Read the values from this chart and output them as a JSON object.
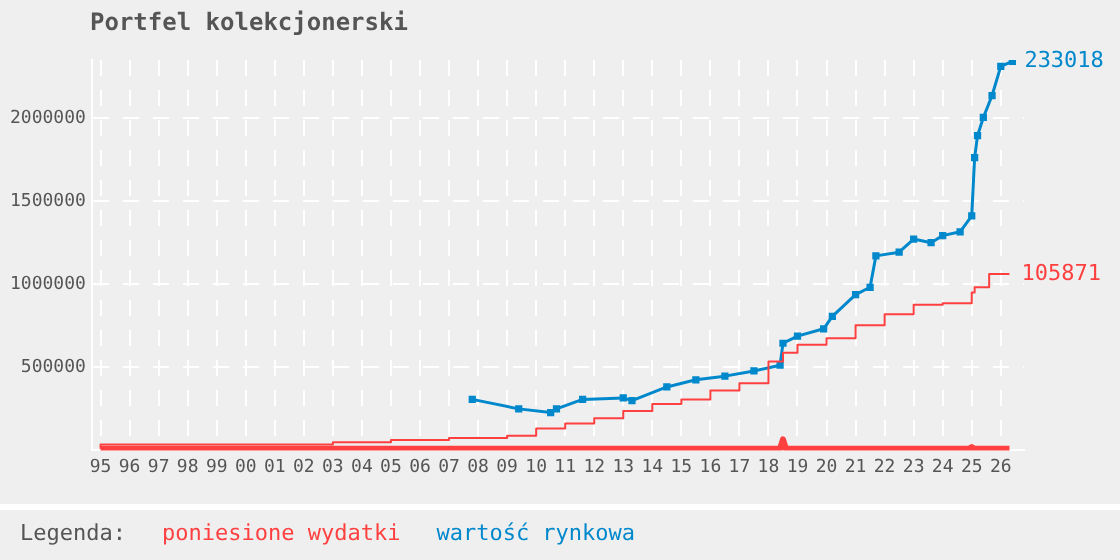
{
  "chart_data": {
    "type": "line",
    "title": "Portfel kolekcjonerski",
    "legend_title": "Legenda:",
    "legend": "bottom",
    "grid": true,
    "xlim": [
      1994.7,
      2026.8
    ],
    "xticks": [
      {
        "value": 1995,
        "label": "95"
      },
      {
        "value": 1996,
        "label": "96"
      },
      {
        "value": 1997,
        "label": "97"
      },
      {
        "value": 1998,
        "label": "98"
      },
      {
        "value": 1999,
        "label": "99"
      },
      {
        "value": 2000,
        "label": "00"
      },
      {
        "value": 2001,
        "label": "01"
      },
      {
        "value": 2002,
        "label": "02"
      },
      {
        "value": 2003,
        "label": "03"
      },
      {
        "value": 2004,
        "label": "04"
      },
      {
        "value": 2005,
        "label": "05"
      },
      {
        "value": 2006,
        "label": "06"
      },
      {
        "value": 2007,
        "label": "07"
      },
      {
        "value": 2008,
        "label": "08"
      },
      {
        "value": 2009,
        "label": "09"
      },
      {
        "value": 2010,
        "label": "10"
      },
      {
        "value": 2011,
        "label": "11"
      },
      {
        "value": 2012,
        "label": "12"
      },
      {
        "value": 2013,
        "label": "13"
      },
      {
        "value": 2014,
        "label": "14"
      },
      {
        "value": 2015,
        "label": "15"
      },
      {
        "value": 2016,
        "label": "16"
      },
      {
        "value": 2017,
        "label": "17"
      },
      {
        "value": 2018,
        "label": "18"
      },
      {
        "value": 2019,
        "label": "19"
      },
      {
        "value": 2020,
        "label": "20"
      },
      {
        "value": 2021,
        "label": "21"
      },
      {
        "value": 2022,
        "label": "22"
      },
      {
        "value": 2023,
        "label": "23"
      },
      {
        "value": 2024,
        "label": "24"
      },
      {
        "value": 2025,
        "label": "25"
      },
      {
        "value": 2026,
        "label": "26"
      }
    ],
    "ylim": [
      0,
      2350000
    ],
    "yticks": [
      500000,
      1000000,
      1500000,
      2000000
    ],
    "series": [
      {
        "color": "#ff4040",
        "marker": "none",
        "x": [
          1995,
          2003,
          2010,
          2018.4,
          2018.5,
          2018.6,
          2024.9,
          2025.0,
          2025.1,
          2026.3
        ],
        "values": [
          10000,
          10000,
          10000,
          10000,
          66000,
          10000,
          10000,
          20000,
          10000,
          10000
        ]
      },
      {
        "type": "step",
        "name": "poniesione wydatki",
        "color": "#ff4040",
        "marker": "none",
        "x": [
          1995,
          2003,
          2005,
          2007,
          2009,
          2010,
          2011,
          2012,
          2013,
          2014,
          2015,
          2016,
          2017,
          2018,
          2018.5,
          2019,
          2020,
          2021,
          2022,
          2023,
          2024,
          2025,
          2025.1,
          2025.6,
          2026,
          2026.3
        ],
        "values": [
          10000,
          35000,
          49000,
          62000,
          75000,
          88000,
          132000,
          162000,
          193000,
          237000,
          280000,
          307000,
          360000,
          404000,
          535000,
          588000,
          636000,
          675000,
          754000,
          820000,
          877000,
          886000,
          951000,
          982000,
          1062000,
          1062000
        ]
      },
      {
        "name": "wartość rynkowa",
        "color": "#0088cc",
        "marker": "square",
        "x": [
          2007.8,
          2009.4,
          2010.5,
          2010.7,
          2011.6,
          2013.0,
          2013.3,
          2014.5,
          2015.5,
          2016.5,
          2017.5,
          2018.4,
          2018.5,
          2019,
          2019.9,
          2020.2,
          2021.0,
          2021.5,
          2021.7,
          2022.5,
          2023.0,
          2023.6,
          2024.0,
          2024.6,
          2025.0,
          2025.1,
          2025.2,
          2025.4,
          2025.7,
          2026.0,
          2026.4
        ],
        "values": [
          307000,
          250000,
          228000,
          250000,
          307000,
          316000,
          300000,
          382000,
          425000,
          447000,
          478000,
          513000,
          645000,
          688000,
          732000,
          807000,
          938000,
          982000,
          1171000,
          1193000,
          1272000,
          1250000,
          1293000,
          1316000,
          1412000,
          1763000,
          1895000,
          2004000,
          2136000,
          2312000,
          2342000
        ]
      }
    ],
    "annotations": [
      {
        "text": "233018",
        "x": 2026.4,
        "y": 2342000
      },
      {
        "text": "105871",
        "x": 2026.3,
        "y": 1062000
      }
    ]
  }
}
